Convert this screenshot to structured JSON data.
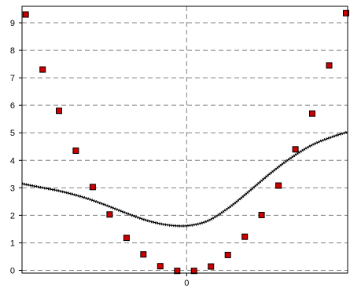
{
  "chart_data": {
    "type": "scatter",
    "title": "",
    "xlabel": "",
    "ylabel": "",
    "xlim": [
      -3.12,
      3.05
    ],
    "ylim": [
      -0.1,
      9.6
    ],
    "x_ticks": [
      0
    ],
    "y_ticks": [
      0,
      1,
      2,
      3,
      4,
      5,
      6,
      7,
      8,
      9
    ],
    "grid": true,
    "grid_style": "dashed",
    "legend": "none",
    "series": [
      {
        "kind": "points",
        "color": "#cc0000",
        "x": [
          -3.05,
          -2.73,
          -2.42,
          -2.1,
          -1.78,
          -1.46,
          -1.14,
          -0.82,
          -0.5,
          -0.18,
          0.14,
          0.46,
          0.78,
          1.1,
          1.42,
          1.74,
          2.06,
          2.38,
          2.7,
          3.02
        ],
        "y": [
          9.3,
          7.3,
          5.8,
          4.35,
          3.03,
          2.03,
          1.18,
          0.58,
          0.15,
          -0.02,
          -0.02,
          0.14,
          0.56,
          1.22,
          2.01,
          3.08,
          4.4,
          5.7,
          7.45,
          9.35
        ]
      },
      {
        "kind": "line",
        "color": "#000000",
        "x": [
          -3.12,
          -2.8,
          -2.4,
          -2.0,
          -1.6,
          -1.2,
          -0.8,
          -0.4,
          0.0,
          0.4,
          0.8,
          1.2,
          1.6,
          2.0,
          2.4,
          2.8,
          3.05
        ],
        "y": [
          3.15,
          3.03,
          2.88,
          2.68,
          2.42,
          2.12,
          1.84,
          1.66,
          1.62,
          1.8,
          2.28,
          2.9,
          3.55,
          4.12,
          4.58,
          4.88,
          5.03
        ]
      }
    ]
  }
}
